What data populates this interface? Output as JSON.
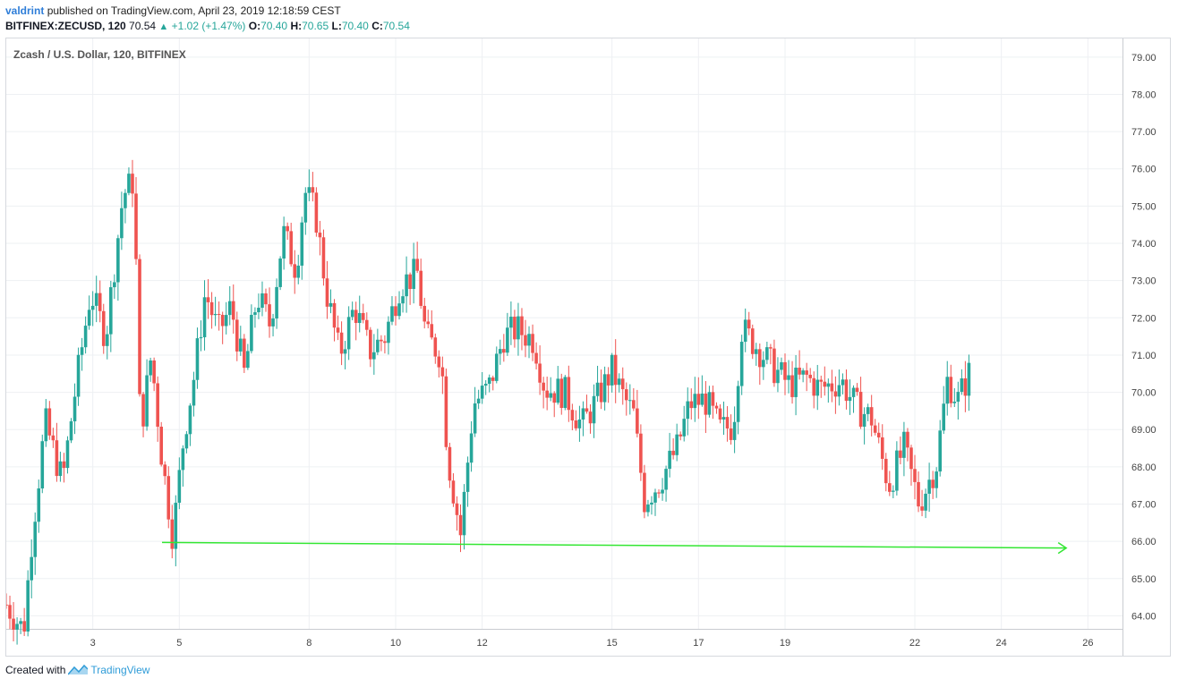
{
  "header": {
    "user": "valdrint",
    "published_text": "published on TradingView.com, April 23, 2019 12:18:59 CEST",
    "symbol_line": "BITFINEX:ZECUSD, 120",
    "last": "70.54",
    "change": "+1.02 (+1.47%)",
    "o_label": "O:",
    "o_value": "70.40",
    "h_label": "H:",
    "h_value": "70.65",
    "l_label": "L:",
    "l_value": "70.40",
    "c_label": "C:",
    "c_value": "70.54"
  },
  "footer": {
    "created_with": "Created with",
    "brand": "TradingView",
    "brand_icon": "tradingview-logo-icon"
  },
  "chart_data": {
    "type": "candlestick",
    "title": "Zcash / U.S. Dollar, 120, BITFINEX",
    "ylim": [
      63.65,
      79.5
    ],
    "yticks": [
      64,
      65,
      66,
      67,
      68,
      69,
      70,
      71,
      72,
      73,
      74,
      75,
      76,
      77,
      78,
      79
    ],
    "xlim": [
      1.0,
      26.8
    ],
    "xticks": [
      3,
      5,
      8,
      10,
      12,
      15,
      17,
      19,
      22,
      24,
      26
    ],
    "grid": true,
    "colors": {
      "up": "#26a69a",
      "down": "#ef5350",
      "trendline": "#33e633",
      "grid": "#eef0f3"
    },
    "anchors": [
      [
        1.0,
        64.3
      ],
      [
        1.4,
        63.6
      ],
      [
        1.6,
        66.2
      ],
      [
        1.9,
        69.2
      ],
      [
        2.3,
        67.6
      ],
      [
        2.6,
        70.1
      ],
      [
        2.95,
        72.7
      ],
      [
        3.3,
        71.5
      ],
      [
        3.7,
        75.3
      ],
      [
        3.95,
        75.7
      ],
      [
        4.1,
        68.9
      ],
      [
        4.35,
        71.0
      ],
      [
        4.6,
        68.2
      ],
      [
        4.85,
        66.1
      ],
      [
        5.1,
        68.8
      ],
      [
        5.35,
        70.5
      ],
      [
        5.6,
        72.7
      ],
      [
        5.9,
        71.6
      ],
      [
        6.2,
        72.3
      ],
      [
        6.5,
        70.5
      ],
      [
        6.8,
        72.6
      ],
      [
        7.1,
        71.8
      ],
      [
        7.4,
        74.3
      ],
      [
        7.7,
        73.3
      ],
      [
        7.9,
        75.4
      ],
      [
        8.15,
        74.8
      ],
      [
        8.4,
        72.7
      ],
      [
        8.7,
        71.0
      ],
      [
        9.05,
        72.3
      ],
      [
        9.4,
        71.1
      ],
      [
        9.75,
        71.5
      ],
      [
        10.1,
        72.9
      ],
      [
        10.5,
        73.2
      ],
      [
        10.7,
        71.5
      ],
      [
        11.05,
        71.0
      ],
      [
        11.2,
        68.3
      ],
      [
        11.5,
        66.2
      ],
      [
        11.8,
        69.7
      ],
      [
        12.15,
        70.1
      ],
      [
        12.5,
        71.5
      ],
      [
        12.8,
        71.7
      ],
      [
        13.2,
        71.4
      ],
      [
        13.45,
        70.1
      ],
      [
        13.9,
        70.0
      ],
      [
        14.3,
        69.1
      ],
      [
        14.65,
        69.8
      ],
      [
        15.0,
        70.6
      ],
      [
        15.25,
        69.9
      ],
      [
        15.5,
        69.4
      ],
      [
        15.75,
        67.1
      ],
      [
        16.1,
        67.6
      ],
      [
        16.5,
        68.5
      ],
      [
        16.8,
        69.7
      ],
      [
        17.15,
        69.8
      ],
      [
        17.5,
        69.0
      ],
      [
        17.8,
        69.1
      ],
      [
        18.0,
        71.7
      ],
      [
        18.3,
        71.3
      ],
      [
        18.7,
        70.7
      ],
      [
        19.1,
        70.2
      ],
      [
        19.5,
        70.4
      ],
      [
        19.8,
        70.1
      ],
      [
        20.3,
        70.3
      ],
      [
        20.65,
        69.6
      ],
      [
        21.0,
        69.3
      ],
      [
        21.4,
        67.5
      ],
      [
        21.75,
        68.5
      ],
      [
        22.1,
        67.0
      ],
      [
        22.5,
        68.1
      ],
      [
        22.75,
        70.3
      ],
      [
        23.0,
        69.8
      ],
      [
        23.25,
        70.5
      ]
    ],
    "trendline": {
      "x": [
        4.6,
        25.5
      ],
      "y": [
        65.97,
        65.82
      ]
    }
  }
}
